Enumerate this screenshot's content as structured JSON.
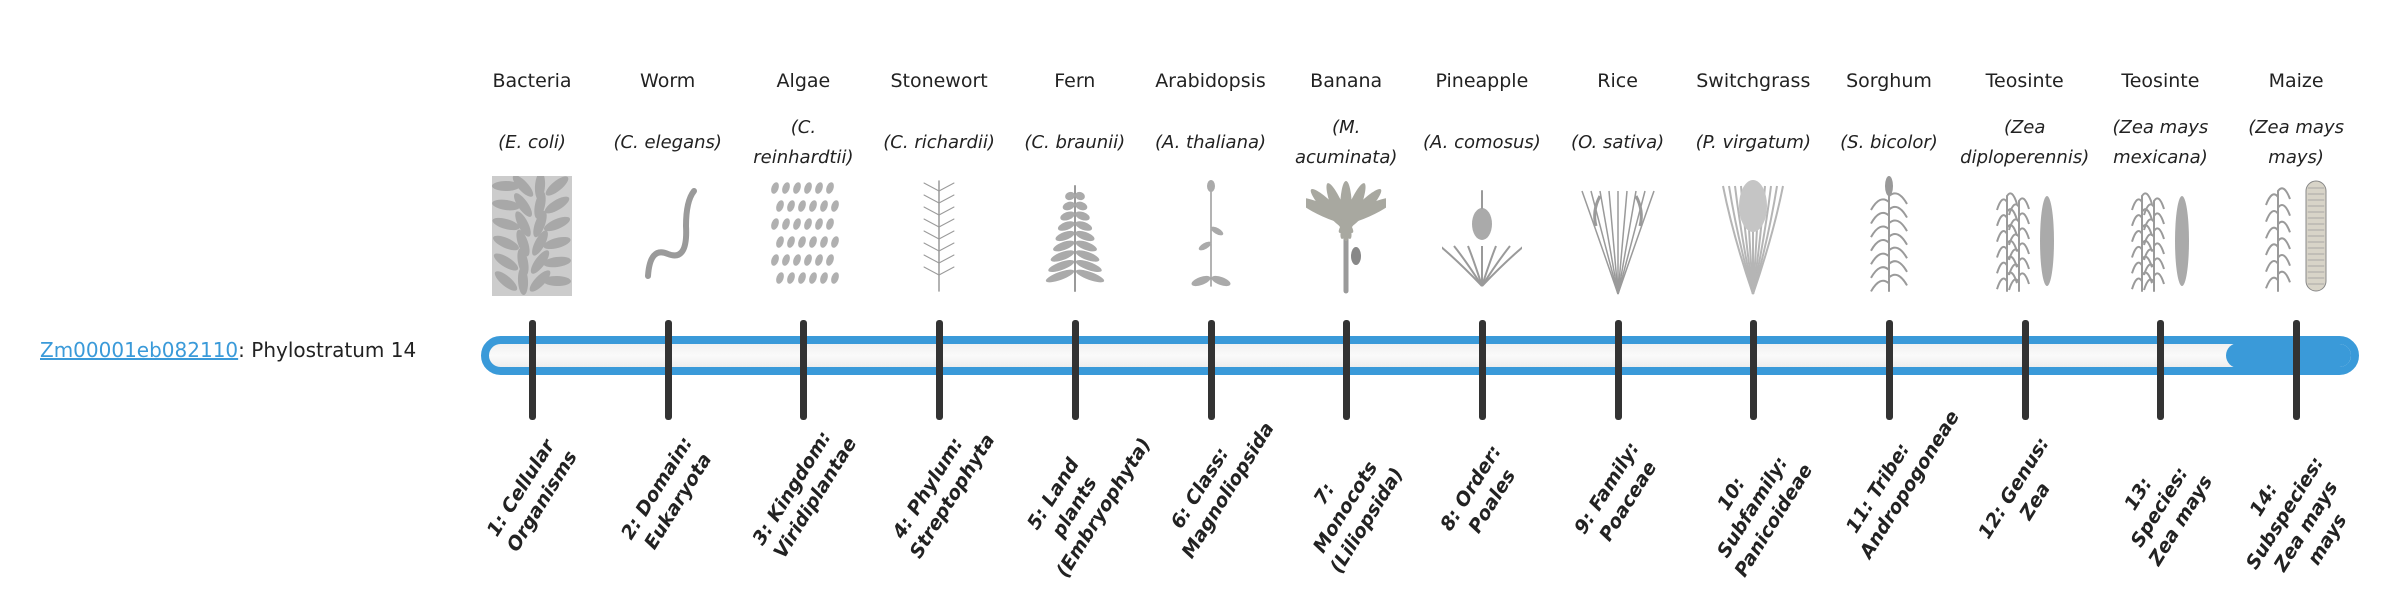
{
  "gene": {
    "id": "Zm00001eb082110",
    "suffix": ": Phylostratum 14"
  },
  "colors": {
    "accent": "#3a9ad9",
    "tick": "#333333",
    "illustration": "#9a9a9a"
  },
  "progress": {
    "stratum": 14,
    "total": 14
  },
  "strata": [
    {
      "common": "Bacteria",
      "scientific": "(E. coli)",
      "label": "1: Cellular Organisms",
      "icon": "bacteria-icon"
    },
    {
      "common": "Worm",
      "scientific": "(C. elegans)",
      "label": "2: Domain: Eukaryota",
      "icon": "worm-icon"
    },
    {
      "common": "Algae",
      "scientific": "(C. reinhardtii)",
      "label": "3: Kingdom: Viridiplantae",
      "icon": "algae-icon"
    },
    {
      "common": "Stonewort",
      "scientific": "(C. richardii)",
      "label": "4: Phylum: Streptophyta",
      "icon": "stonewort-icon"
    },
    {
      "common": "Fern",
      "scientific": "(C. braunii)",
      "label": "5: Land plants (Embryophyta)",
      "icon": "fern-icon"
    },
    {
      "common": "Arabidopsis",
      "scientific": "(A. thaliana)",
      "label": "6: Class: Magnoliopsida",
      "icon": "arabidopsis-icon"
    },
    {
      "common": "Banana",
      "scientific": "(M. acuminata)",
      "label": "7: Monocots (Liliopsida)",
      "icon": "banana-icon"
    },
    {
      "common": "Pineapple",
      "scientific": "(A. comosus)",
      "label": "8: Order: Poales",
      "icon": "pineapple-icon"
    },
    {
      "common": "Rice",
      "scientific": "(O. sativa)",
      "label": "9: Family: Poaceae",
      "icon": "rice-icon"
    },
    {
      "common": "Switchgrass",
      "scientific": "(P. virgatum)",
      "label": "10: Subfamily: Panicoideae",
      "icon": "switchgrass-icon"
    },
    {
      "common": "Sorghum",
      "scientific": "(S. bicolor)",
      "label": "11: Tribe: Andropogoneae",
      "icon": "sorghum-icon"
    },
    {
      "common": "Teosinte",
      "scientific": "(Zea diploperennis)",
      "label": "12: Genus: Zea",
      "icon": "teosinte-icon"
    },
    {
      "common": "Teosinte",
      "scientific": "(Zea mays mexicana)",
      "label": "13: Species: Zea mays",
      "icon": "teosinte-icon"
    },
    {
      "common": "Maize",
      "scientific": "(Zea mays mays)",
      "label": "14: Subspecies: Zea mays mays",
      "icon": "maize-icon"
    }
  ]
}
